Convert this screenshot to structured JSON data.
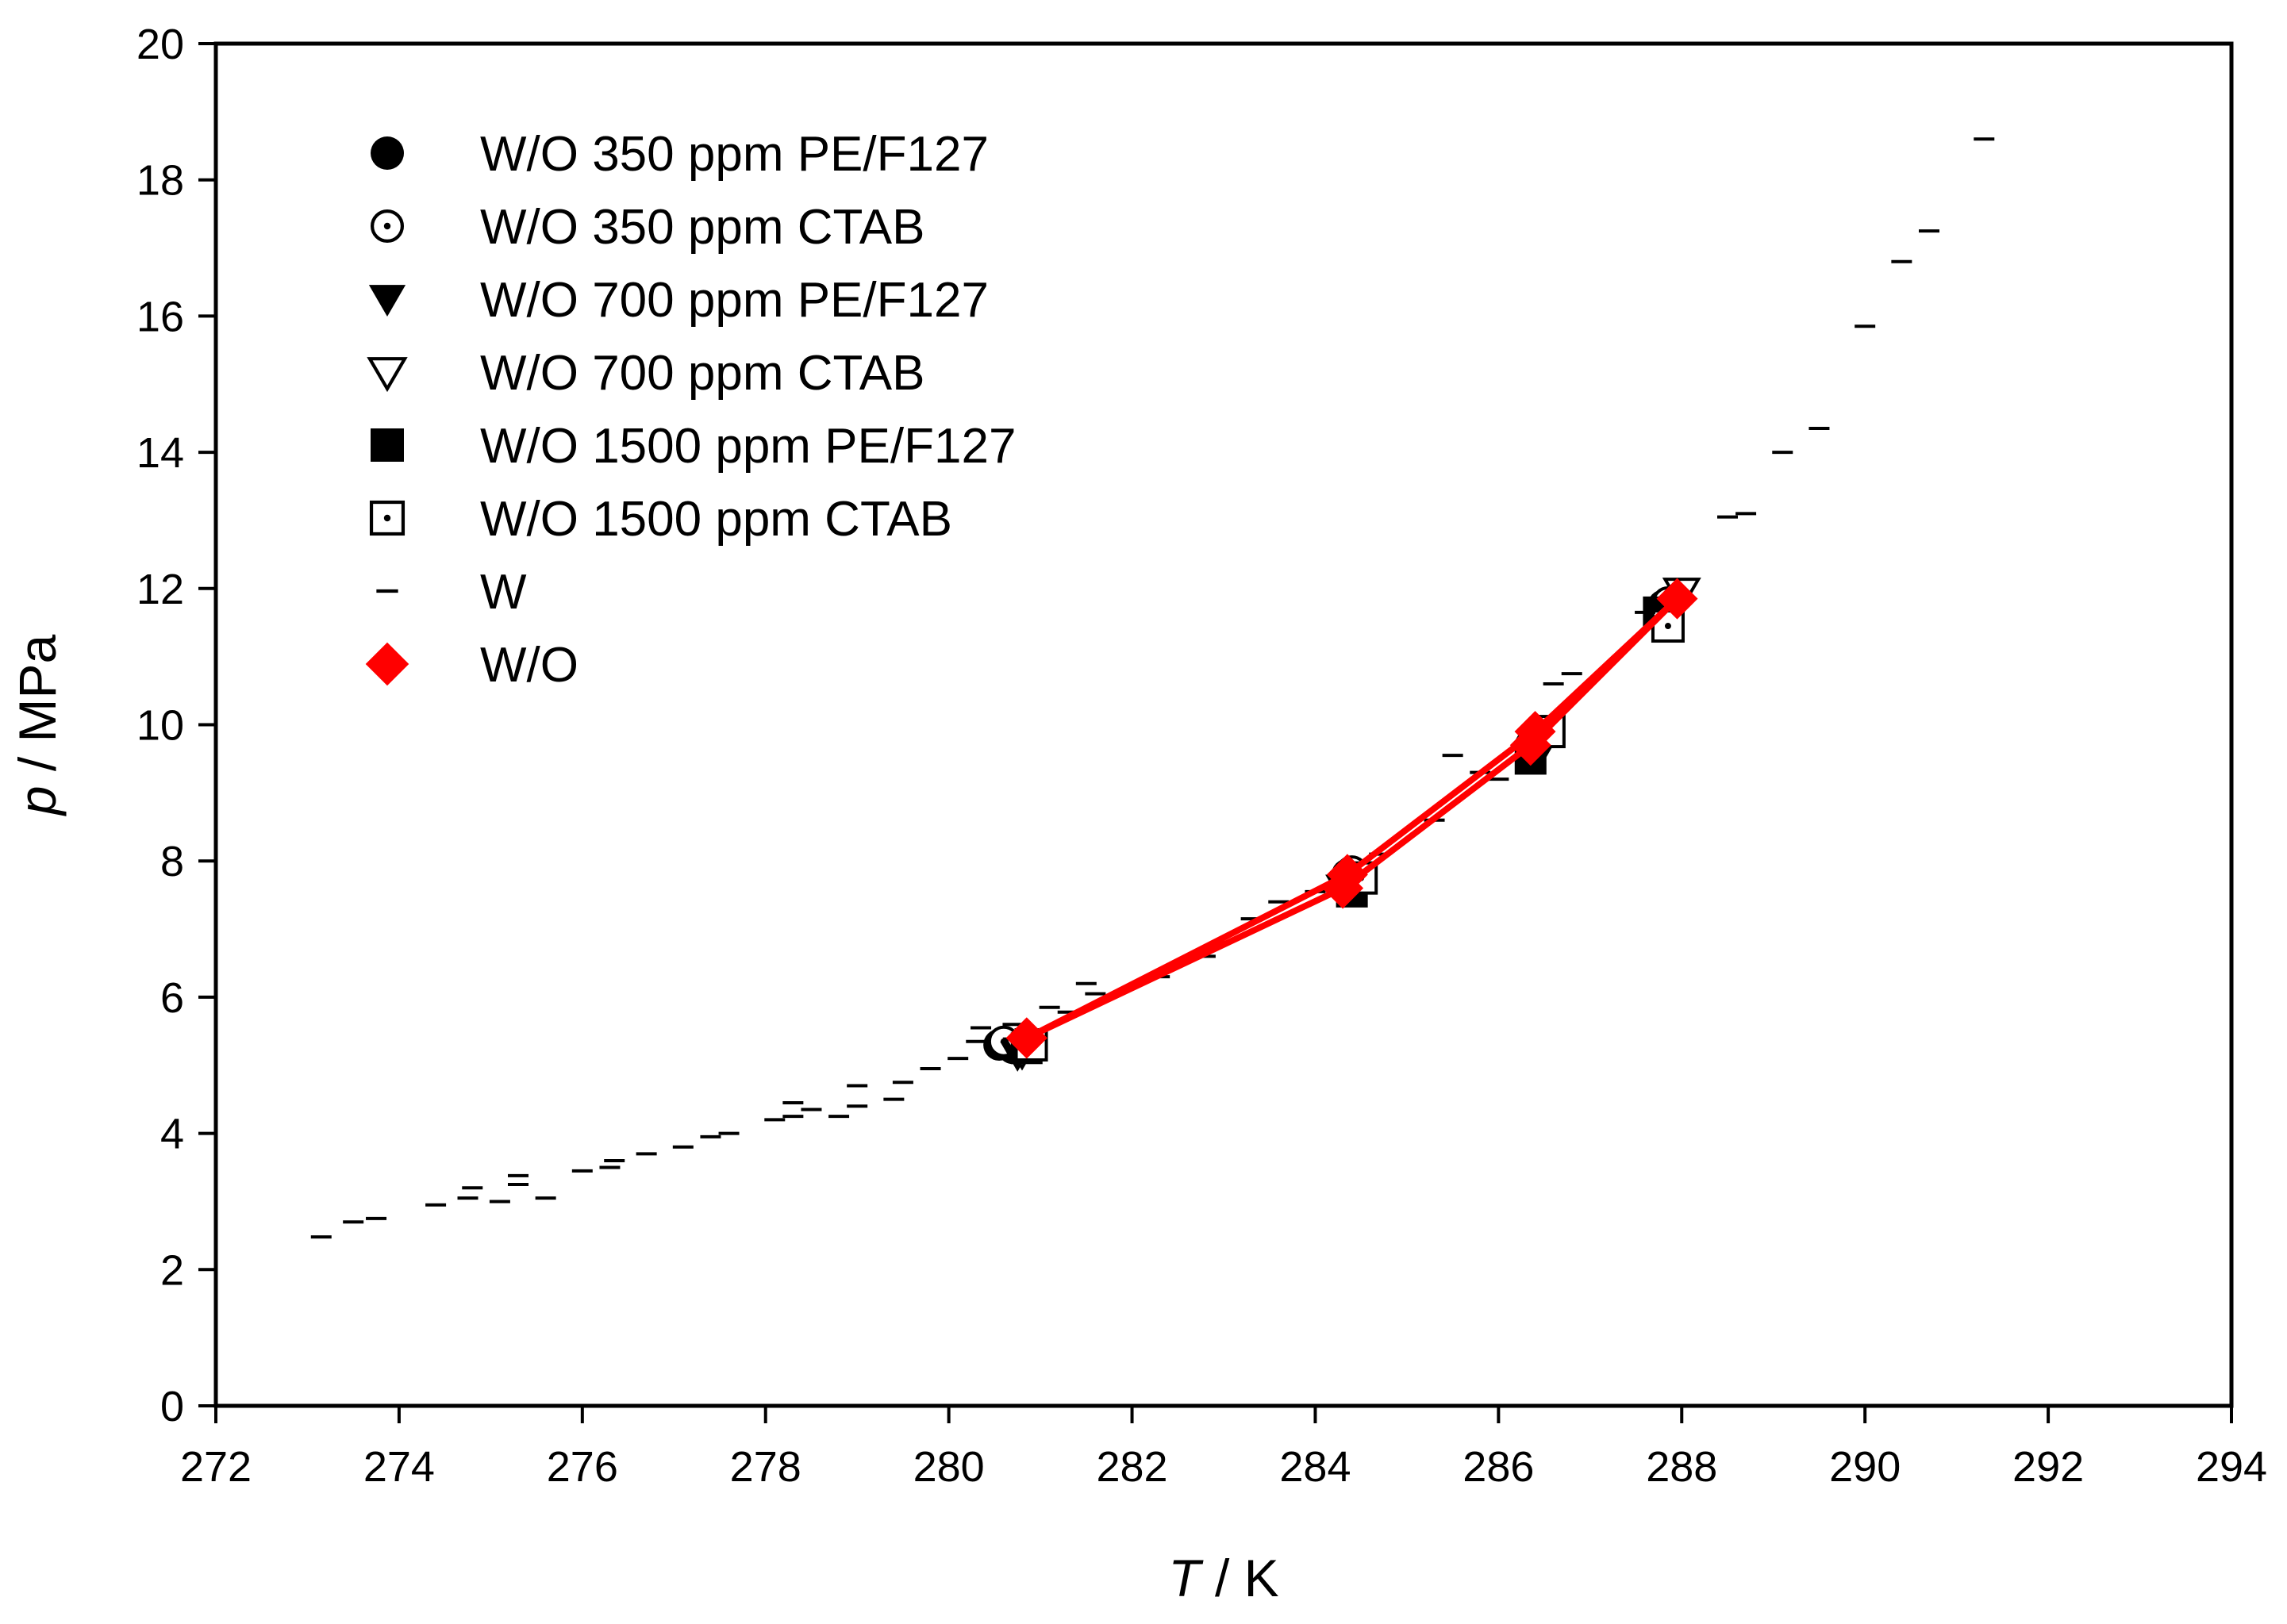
{
  "chart_data": {
    "type": "scatter",
    "xlabel_var": "T",
    "xlabel_unit": " / K",
    "ylabel_var": "p",
    "ylabel_unit": " / MPa",
    "xlim": [
      272,
      294
    ],
    "ylim": [
      0,
      20
    ],
    "xticks": [
      272,
      274,
      276,
      278,
      280,
      282,
      284,
      286,
      288,
      290,
      292,
      294
    ],
    "yticks": [
      0,
      2,
      4,
      6,
      8,
      10,
      12,
      14,
      16,
      18,
      20
    ],
    "grid": false,
    "legend_position": "top-left",
    "series": [
      {
        "name": "W/O 350 ppm PE/F127",
        "marker": "filled-circle",
        "color": "#000000",
        "points": [
          [
            280.55,
            5.3
          ],
          [
            280.7,
            5.25
          ],
          [
            284.35,
            7.8
          ],
          [
            286.35,
            9.7
          ],
          [
            287.8,
            11.75
          ]
        ]
      },
      {
        "name": "W/O 350 ppm CTAB",
        "marker": "open-circle-dot",
        "color": "#000000",
        "points": [
          [
            280.6,
            5.35
          ],
          [
            284.4,
            7.85
          ],
          [
            286.4,
            9.85
          ],
          [
            287.85,
            11.8
          ]
        ]
      },
      {
        "name": "W/O 700 ppm PE/F127",
        "marker": "filled-triangle-down",
        "color": "#000000",
        "points": [
          [
            280.75,
            5.15
          ],
          [
            284.3,
            7.6
          ],
          [
            286.45,
            9.6
          ],
          [
            287.9,
            11.6
          ]
        ]
      },
      {
        "name": "W/O 700 ppm CTAB",
        "marker": "open-triangle-down",
        "color": "#000000",
        "points": [
          [
            280.8,
            5.2
          ],
          [
            284.45,
            7.7
          ],
          [
            286.5,
            9.8
          ],
          [
            288.0,
            11.95
          ]
        ]
      },
      {
        "name": "W/O 1500 ppm PE/F127",
        "marker": "filled-square",
        "color": "#000000",
        "points": [
          [
            280.85,
            5.25
          ],
          [
            284.4,
            7.55
          ],
          [
            286.35,
            9.5
          ],
          [
            287.75,
            11.65
          ]
        ]
      },
      {
        "name": "W/O 1500 ppm CTAB",
        "marker": "open-square-dot",
        "color": "#000000",
        "points": [
          [
            280.9,
            5.3
          ],
          [
            284.5,
            7.75
          ],
          [
            286.55,
            9.9
          ],
          [
            287.85,
            11.45
          ]
        ]
      },
      {
        "name": "W",
        "marker": "dash",
        "color": "#000000",
        "points": [
          [
            273.15,
            2.48
          ],
          [
            273.5,
            2.7
          ],
          [
            273.75,
            2.75
          ],
          [
            274.4,
            2.95
          ],
          [
            274.75,
            3.05
          ],
          [
            274.8,
            3.2
          ],
          [
            275.1,
            3.0
          ],
          [
            275.3,
            3.25
          ],
          [
            275.3,
            3.38
          ],
          [
            275.6,
            3.05
          ],
          [
            276.0,
            3.45
          ],
          [
            276.3,
            3.5
          ],
          [
            276.35,
            3.6
          ],
          [
            276.7,
            3.7
          ],
          [
            277.1,
            3.8
          ],
          [
            277.4,
            3.95
          ],
          [
            277.6,
            4.0
          ],
          [
            278.1,
            4.2
          ],
          [
            278.3,
            4.25
          ],
          [
            278.3,
            4.45
          ],
          [
            278.5,
            4.35
          ],
          [
            278.8,
            4.25
          ],
          [
            279.0,
            4.4
          ],
          [
            279.4,
            4.5
          ],
          [
            279.0,
            4.7
          ],
          [
            279.5,
            4.75
          ],
          [
            279.8,
            4.95
          ],
          [
            280.1,
            5.1
          ],
          [
            280.3,
            5.35
          ],
          [
            280.35,
            5.55
          ],
          [
            280.7,
            5.6
          ],
          [
            281.1,
            5.85
          ],
          [
            281.3,
            5.78
          ],
          [
            281.6,
            6.05
          ],
          [
            281.5,
            6.2
          ],
          [
            282.3,
            6.3
          ],
          [
            282.8,
            6.6
          ],
          [
            283.3,
            7.15
          ],
          [
            283.6,
            7.4
          ],
          [
            284.0,
            7.55
          ],
          [
            284.7,
            8.1
          ],
          [
            285.3,
            8.6
          ],
          [
            285.5,
            9.55
          ],
          [
            285.8,
            9.3
          ],
          [
            286.0,
            9.2
          ],
          [
            286.6,
            10.6
          ],
          [
            286.8,
            10.75
          ],
          [
            287.6,
            11.65
          ],
          [
            288.5,
            13.05
          ],
          [
            288.7,
            13.1
          ],
          [
            289.1,
            14.0
          ],
          [
            289.5,
            14.35
          ],
          [
            290.0,
            15.85
          ],
          [
            290.4,
            16.8
          ],
          [
            290.7,
            17.25
          ],
          [
            291.3,
            18.6
          ]
        ]
      },
      {
        "name": "W/O",
        "marker": "filled-diamond",
        "color": "#ff0000",
        "connected": true,
        "points": [
          [
            280.85,
            5.4
          ],
          [
            284.35,
            7.8
          ],
          [
            286.4,
            9.9
          ],
          [
            287.95,
            11.85
          ],
          [
            286.35,
            9.7
          ],
          [
            284.3,
            7.6
          ],
          [
            280.85,
            5.4
          ]
        ]
      }
    ]
  }
}
